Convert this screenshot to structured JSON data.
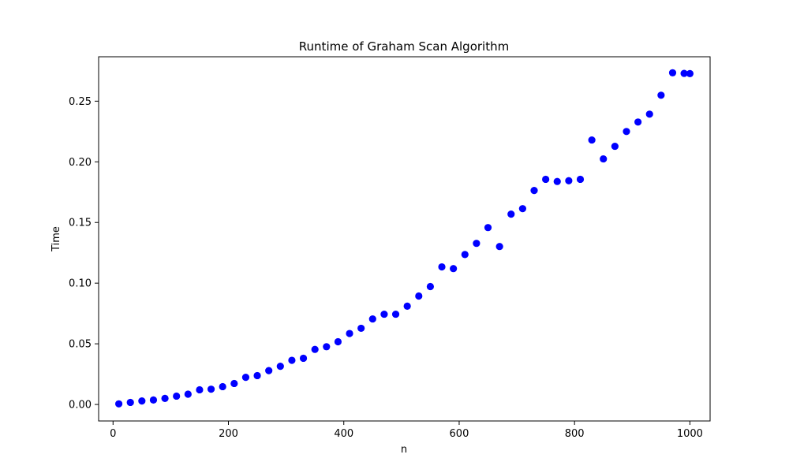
{
  "chart_data": {
    "type": "scatter",
    "title": "Runtime of Graham Scan Algorithm",
    "xlabel": "n",
    "ylabel": "Time",
    "xlim": [
      -25,
      1035
    ],
    "ylim": [
      -0.0136,
      0.2866
    ],
    "x_ticks": [
      0,
      200,
      400,
      600,
      800,
      1000
    ],
    "x_tick_labels": [
      "0",
      "200",
      "400",
      "600",
      "800",
      "1000"
    ],
    "y_ticks": [
      0.0,
      0.05,
      0.1,
      0.15,
      0.2,
      0.25
    ],
    "y_tick_labels": [
      "0.00",
      "0.05",
      "0.10",
      "0.15",
      "0.20",
      "0.25"
    ],
    "grid": false,
    "marker_color": "#0000ff",
    "series": [
      {
        "name": "Graham Scan",
        "x": [
          10,
          30,
          50,
          70,
          90,
          110,
          130,
          150,
          170,
          190,
          210,
          230,
          250,
          270,
          290,
          310,
          330,
          350,
          370,
          390,
          410,
          430,
          450,
          470,
          490,
          510,
          530,
          550,
          570,
          590,
          610,
          630,
          650,
          670,
          690,
          710,
          730,
          750,
          770,
          790,
          810,
          830,
          850,
          870,
          890,
          910,
          930,
          950,
          970,
          990,
          1000
        ],
        "y": [
          0.0005,
          0.0017,
          0.0029,
          0.0037,
          0.005,
          0.0069,
          0.0085,
          0.0121,
          0.0126,
          0.0147,
          0.0173,
          0.0224,
          0.0238,
          0.0279,
          0.0315,
          0.0364,
          0.0381,
          0.0454,
          0.0476,
          0.0517,
          0.0585,
          0.0628,
          0.0705,
          0.0744,
          0.0744,
          0.081,
          0.0894,
          0.0972,
          0.1134,
          0.112,
          0.1236,
          0.1328,
          0.1458,
          0.1302,
          0.1569,
          0.1614,
          0.1764,
          0.1856,
          0.1838,
          0.1844,
          0.1856,
          0.218,
          0.2024,
          0.2128,
          0.225,
          0.2328,
          0.2393,
          0.2549,
          0.2734,
          0.2729,
          0.2727
        ]
      }
    ]
  }
}
